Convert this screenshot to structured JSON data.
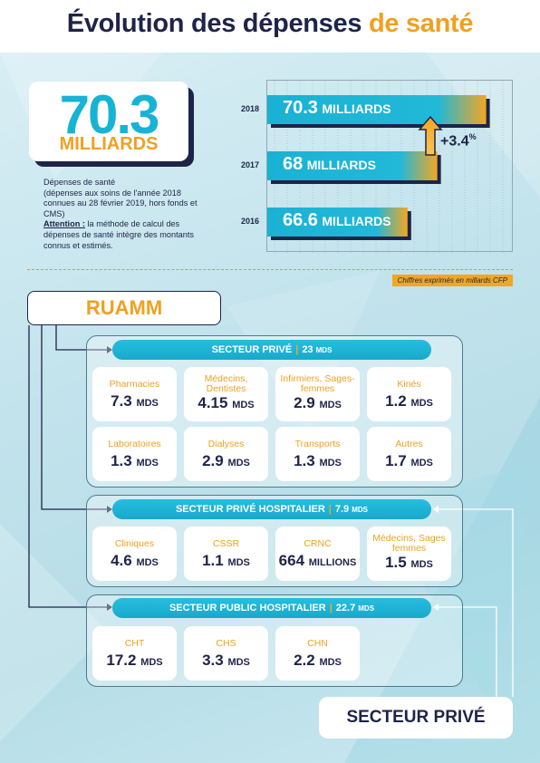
{
  "title": {
    "main": "Évolution des dépenses",
    "accent": "de santé"
  },
  "headline": {
    "value": "70.3",
    "unit": "MILLIARDS"
  },
  "description": {
    "line1": "Dépenses de santé",
    "line2": "(dépenses aux soins de l'année 2018 connues au 28 février 2019, hors fonds et CMS)",
    "attention_label": "Attention :",
    "attention_text": " la méthode de calcul des dépenses de santé intègre des montants connus et estimés."
  },
  "chart_data": {
    "type": "bar",
    "orientation": "horizontal",
    "categories": [
      "2018",
      "2017",
      "2016"
    ],
    "values": [
      70.3,
      68,
      66.6
    ],
    "value_labels": [
      {
        "num": "70.3",
        "unit": "MILLIARDS"
      },
      {
        "num": "68",
        "unit": "MILLIARDS"
      },
      {
        "num": "66.6",
        "unit": "MILLIARDS"
      }
    ],
    "annotation": "+3.4",
    "annotation_suffix": "%",
    "grid": true
  },
  "note": "Chiffres exprimés en millards CFP",
  "ruamm_label": "RUAMM",
  "sectors": [
    {
      "title": "SECTEUR PRIVÉ",
      "amount": "23",
      "unit": "MDS",
      "items": [
        {
          "label": "Pharmacies",
          "value": "7.3",
          "unit": "MDS"
        },
        {
          "label": "Médecins, Dentistes",
          "value": "4.15",
          "unit": "MDS"
        },
        {
          "label": "Infirmiers, Sages-femmes",
          "value": "2.9",
          "unit": "MDS"
        },
        {
          "label": "Kinés",
          "value": "1.2",
          "unit": "MDS"
        },
        {
          "label": "Laboratoires",
          "value": "1.3",
          "unit": "MDS"
        },
        {
          "label": "Dialyses",
          "value": "2.9",
          "unit": "MDS"
        },
        {
          "label": "Transports",
          "value": "1.3",
          "unit": "MDS"
        },
        {
          "label": "Autres",
          "value": "1.7",
          "unit": "MDS"
        }
      ]
    },
    {
      "title": "SECTEUR PRIVÉ HOSPITALIER",
      "amount": "7.9",
      "unit": "MDS",
      "items": [
        {
          "label": "Cliniques",
          "value": "4.6",
          "unit": "MDS"
        },
        {
          "label": "CSSR",
          "value": "1.1",
          "unit": "MDS"
        },
        {
          "label": "CRNC",
          "value": "664",
          "unit": "MILLIONS"
        },
        {
          "label": "Médecins, Sages femmes",
          "value": "1.5",
          "unit": "MDS"
        }
      ]
    },
    {
      "title": "SECTEUR PUBLIC HOSPITALIER",
      "amount": "22.7",
      "unit": "MDS",
      "items": [
        {
          "label": "CHT",
          "value": "17.2",
          "unit": "MDS"
        },
        {
          "label": "CHS",
          "value": "3.3",
          "unit": "MDS"
        },
        {
          "label": "CHN",
          "value": "2.2",
          "unit": "MDS"
        }
      ]
    }
  ],
  "prive_label": "SECTEUR PRIVÉ",
  "colors": {
    "accent": "#f0a020",
    "navy": "#1e2448",
    "cyan": "#17b3d4"
  }
}
